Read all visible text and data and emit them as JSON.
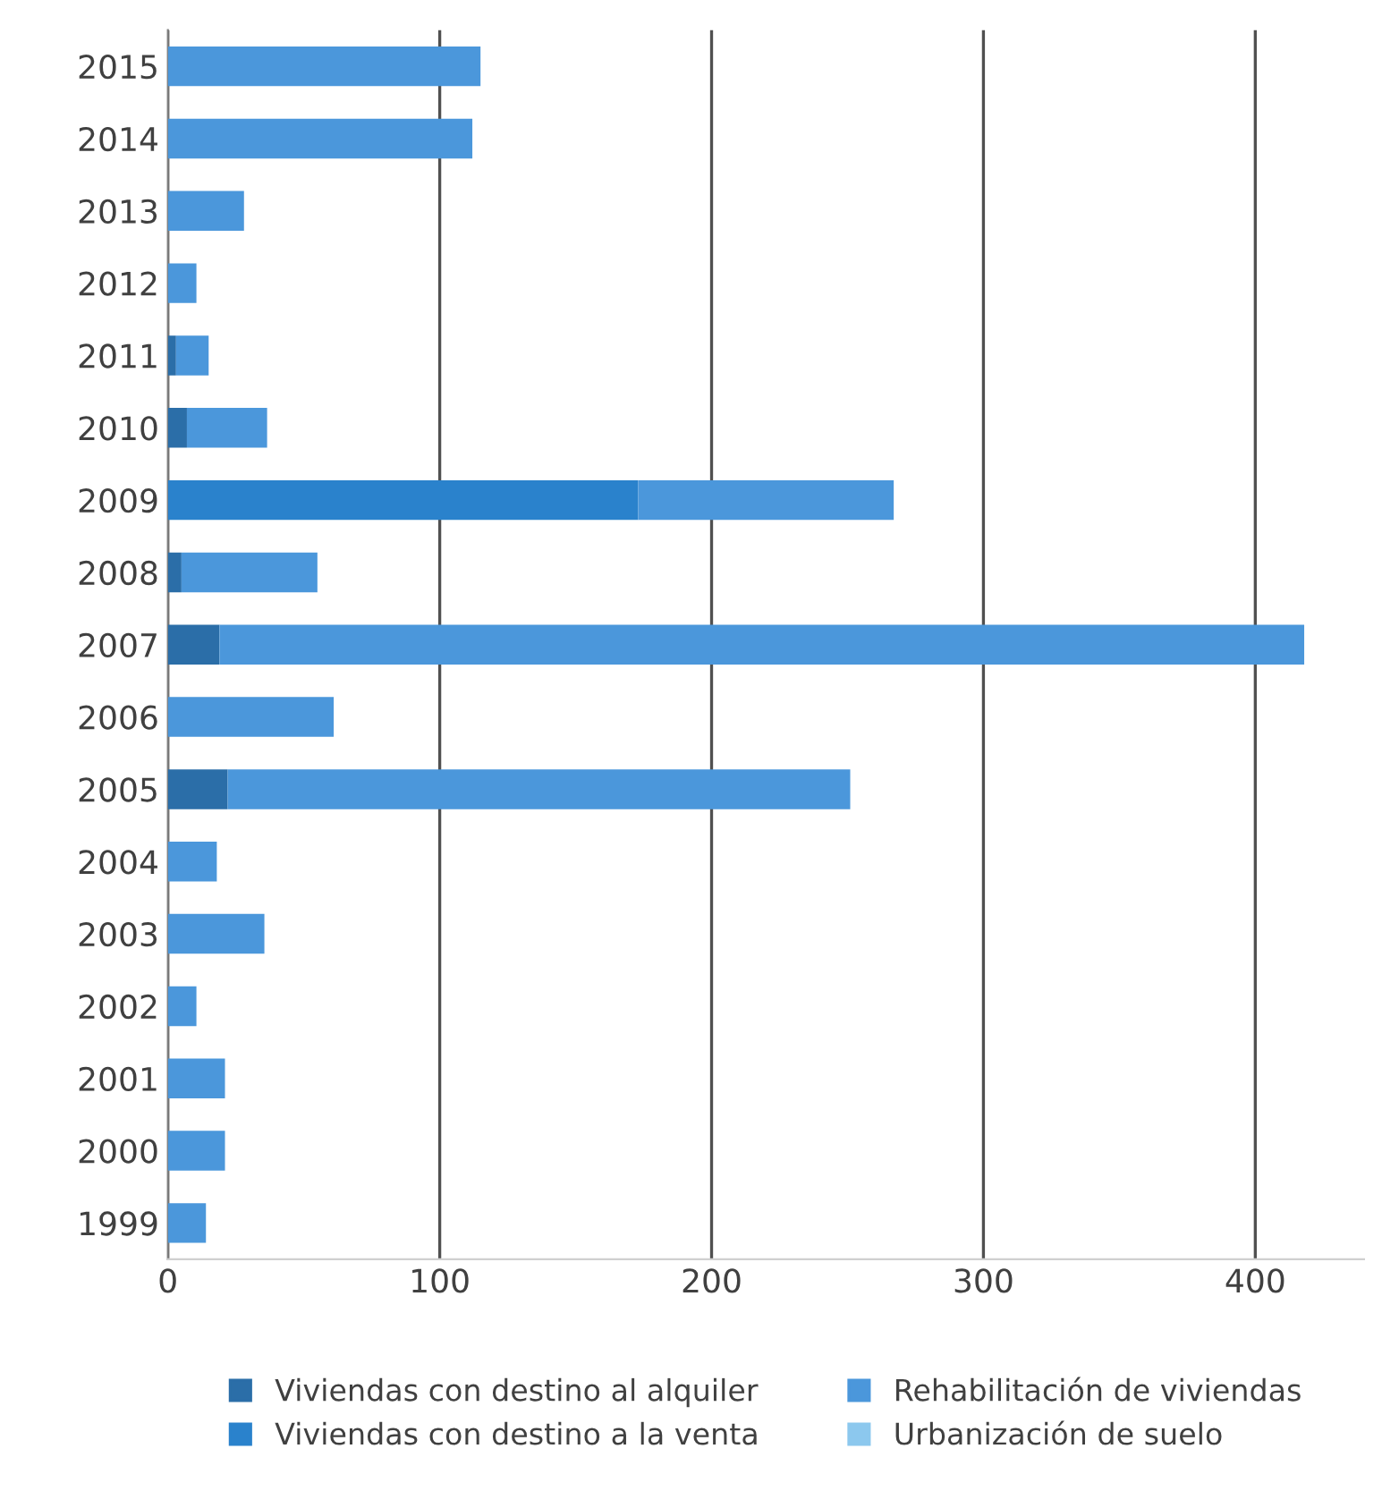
{
  "chart_data": {
    "type": "bar",
    "orientation": "horizontal",
    "stacked": true,
    "categories": [
      "2015",
      "2014",
      "2013",
      "2012",
      "2011",
      "2010",
      "2009",
      "2008",
      "2007",
      "2006",
      "2005",
      "2004",
      "2003",
      "2002",
      "2001",
      "2000",
      "1999"
    ],
    "series": [
      {
        "name": "Viviendas con destino al alquiler",
        "color": "#2b6ea8",
        "values": [
          null,
          null,
          null,
          null,
          3,
          7,
          null,
          5,
          19,
          null,
          22,
          null,
          null,
          null,
          null,
          null,
          null
        ]
      },
      {
        "name": "Viviendas con destino a la venta",
        "color": "#2a82cc",
        "values": [
          null,
          null,
          null,
          null,
          null,
          null,
          173,
          null,
          null,
          null,
          null,
          null,
          null,
          null,
          null,
          null,
          null
        ]
      },
      {
        "name": "Rehabilitación de viviendas",
        "color": "#4b97db",
        "values": [
          115,
          112,
          28,
          10.5,
          12,
          29.5,
          94,
          50,
          399,
          61,
          229,
          18,
          35.5,
          10.5,
          21,
          21,
          14
        ]
      },
      {
        "name": "Urbanización de suelo",
        "color": "#8cc8ee",
        "values": [
          null,
          null,
          null,
          null,
          null,
          null,
          null,
          null,
          null,
          null,
          null,
          null,
          null,
          null,
          null,
          null,
          null
        ]
      }
    ],
    "xlim": [
      0,
      440
    ],
    "xticks": [
      0,
      100,
      200,
      300,
      400
    ],
    "grid": "x",
    "legend": "bottom"
  }
}
